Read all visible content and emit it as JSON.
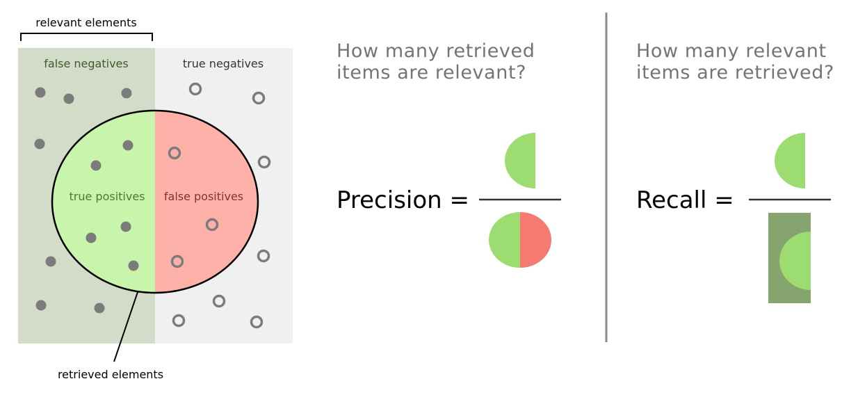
{
  "left_panel": {
    "relevant_label": "relevant elements",
    "retrieved_label": "retrieved elements",
    "false_negatives_label": "false negatives",
    "true_negatives_label": "true negatives",
    "true_positives_label": "true positives",
    "false_positives_label": "false positives"
  },
  "precision": {
    "question_line1": "How many retrieved",
    "question_line2": "items are relevant?",
    "label": "Precision ="
  },
  "recall": {
    "question_line1": "How many relevant",
    "question_line2": "items are retrieved?",
    "label": "Recall ="
  },
  "colors": {
    "relevant_region": "#d3dbc9",
    "irrelevant_region": "#f0f0f0",
    "true_positive": "#c8f4ac",
    "false_positive": "#fdb1a9",
    "precision_green": "#9cdc70",
    "precision_red": "#f47a72",
    "recall_box": "#86a46e",
    "dot": "#7b7b7b",
    "divider": "#8a8a8a"
  }
}
